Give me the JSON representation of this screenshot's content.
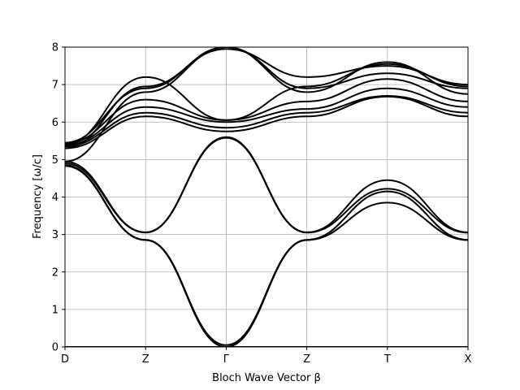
{
  "chart_data": {
    "type": "line",
    "title": "",
    "xlabel": "Bloch Wave Vector β",
    "ylabel": "Frequency [ω/c]",
    "x_ticks": [
      "D",
      "Z",
      "Γ",
      "Z",
      "T",
      "X"
    ],
    "x": [
      0,
      1,
      2,
      3,
      4,
      5
    ],
    "ylim": [
      0,
      8
    ],
    "y_ticks": [
      0,
      1,
      2,
      3,
      4,
      5,
      6,
      7,
      8
    ],
    "grid": true,
    "series": [
      {
        "values": [
          0.0,
          0.0,
          0.0,
          0.0,
          0.0,
          0.0
        ]
      },
      {
        "values": [
          4.83,
          2.85,
          0.0,
          2.85,
          3.85,
          2.85
        ]
      },
      {
        "values": [
          4.85,
          2.86,
          0.05,
          2.86,
          4.15,
          2.86
        ]
      },
      {
        "values": [
          4.9,
          3.05,
          5.58,
          3.05,
          4.22,
          3.05
        ]
      },
      {
        "values": [
          4.95,
          3.06,
          5.6,
          3.06,
          4.45,
          3.06
        ]
      },
      {
        "values": [
          5.3,
          6.15,
          5.75,
          6.15,
          6.68,
          6.15
        ]
      },
      {
        "values": [
          5.35,
          6.25,
          5.85,
          6.25,
          6.7,
          6.25
        ]
      },
      {
        "values": [
          5.38,
          6.4,
          6.0,
          6.35,
          6.9,
          6.4
        ]
      },
      {
        "values": [
          5.42,
          6.6,
          6.05,
          6.55,
          7.15,
          6.55
        ]
      },
      {
        "values": [
          5.45,
          6.9,
          8.0,
          6.9,
          7.3,
          6.9
        ]
      },
      {
        "values": [
          5.4,
          7.2,
          6.05,
          6.95,
          7.55,
          6.95
        ]
      },
      {
        "values": [
          4.95,
          6.8,
          8.0,
          6.8,
          7.6,
          6.75
        ]
      },
      {
        "values": [
          5.3,
          6.95,
          7.95,
          7.2,
          7.5,
          7.0
        ]
      }
    ]
  }
}
